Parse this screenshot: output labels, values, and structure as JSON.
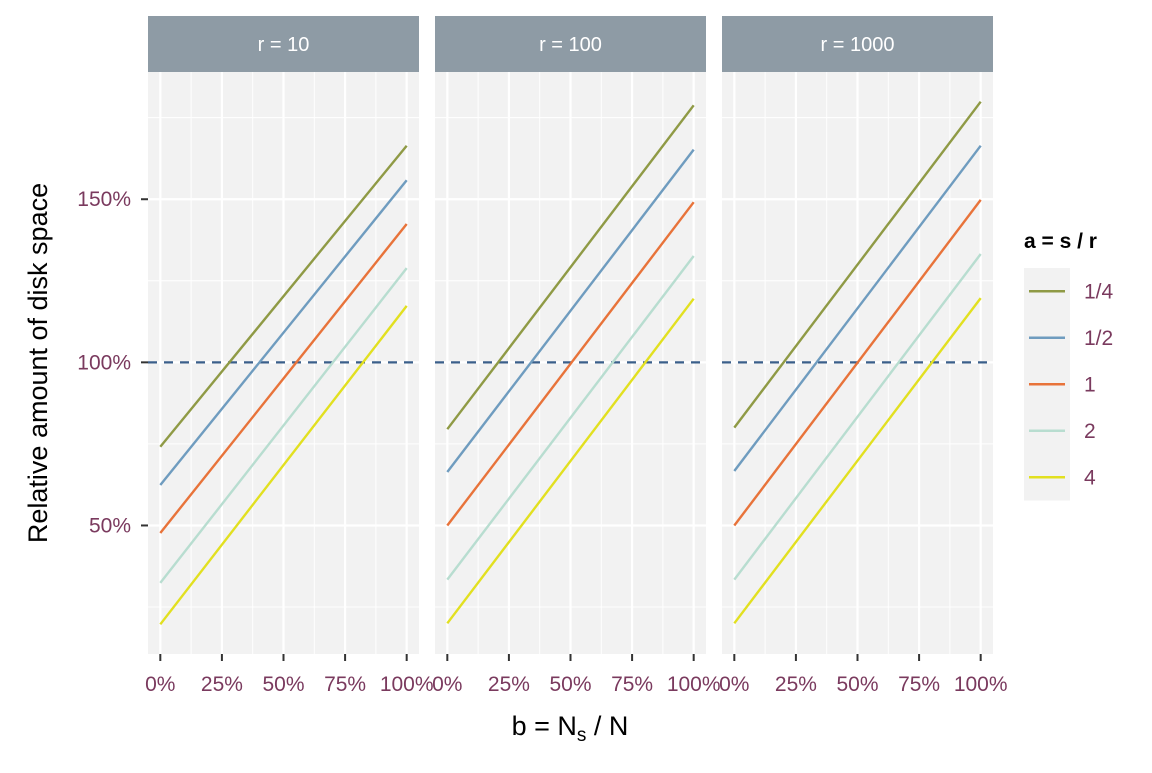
{
  "chart_data": {
    "type": "line",
    "facets": [
      {
        "strip_label": "r = 10",
        "series": [
          {
            "name": "1/4",
            "x": [
              0,
              1
            ],
            "y": [
              74.1,
              166.4
            ]
          },
          {
            "name": "1/2",
            "x": [
              0,
              1
            ],
            "y": [
              62.4,
              155.8
            ]
          },
          {
            "name": "1",
            "x": [
              0,
              1
            ],
            "y": [
              47.7,
              142.4
            ]
          },
          {
            "name": "2",
            "x": [
              0,
              1
            ],
            "y": [
              32.4,
              128.9
            ]
          },
          {
            "name": "4",
            "x": [
              0,
              1
            ],
            "y": [
              19.7,
              117.3
            ]
          }
        ]
      },
      {
        "strip_label": "r = 100",
        "series": [
          {
            "name": "1/4",
            "x": [
              0,
              1
            ],
            "y": [
              79.5,
              178.8
            ]
          },
          {
            "name": "1/2",
            "x": [
              0,
              1
            ],
            "y": [
              66.4,
              165.2
            ]
          },
          {
            "name": "1",
            "x": [
              0,
              1
            ],
            "y": [
              50.0,
              149.1
            ]
          },
          {
            "name": "2",
            "x": [
              0,
              1
            ],
            "y": [
              33.4,
              132.6
            ]
          },
          {
            "name": "4",
            "x": [
              0,
              1
            ],
            "y": [
              20.0,
              119.5
            ]
          }
        ]
      },
      {
        "strip_label": "r = 1000",
        "series": [
          {
            "name": "1/4",
            "x": [
              0,
              1
            ],
            "y": [
              80.0,
              179.9
            ]
          },
          {
            "name": "1/2",
            "x": [
              0,
              1
            ],
            "y": [
              66.7,
              166.4
            ]
          },
          {
            "name": "1",
            "x": [
              0,
              1
            ],
            "y": [
              50.0,
              149.8
            ]
          },
          {
            "name": "2",
            "x": [
              0,
              1
            ],
            "y": [
              33.4,
              133.2
            ]
          },
          {
            "name": "4",
            "x": [
              0,
              1
            ],
            "y": [
              20.0,
              119.7
            ]
          }
        ]
      }
    ],
    "reference_line": {
      "y": 100,
      "style": "dashed",
      "color": "#3A5F8A"
    },
    "xlabel": "b = N",
    "xlabel_sub": "s",
    "xlabel_tail": " / N",
    "ylabel": "Relative amount of disk space",
    "x_ticks": [
      0,
      0.25,
      0.5,
      0.75,
      1
    ],
    "x_tick_labels": [
      "0%",
      "25%",
      "50%",
      "75%",
      "100%"
    ],
    "y_ticks": [
      50,
      100,
      150
    ],
    "y_tick_labels": [
      "50%",
      "100%",
      "150%"
    ],
    "xlim": [
      -0.05,
      1.05
    ],
    "ylim": [
      10.6,
      189.0
    ],
    "legend": {
      "title": "a = s / r",
      "placement": "right",
      "entries": [
        "1/4",
        "1/2",
        "1",
        "2",
        "4"
      ]
    },
    "colors": {
      "1/4": "#8F9A45",
      "1/2": "#6F9CBF",
      "1": "#E8733A",
      "2": "#B8DDD0",
      "4": "#E2E020",
      "panel_bg": "#F2F2F2",
      "strip_bg": "#8E9BA5",
      "strip_text": "#FFFFFF",
      "tick_label": "#7A3A5E",
      "grid": "#FFFFFF"
    },
    "grid": true
  }
}
